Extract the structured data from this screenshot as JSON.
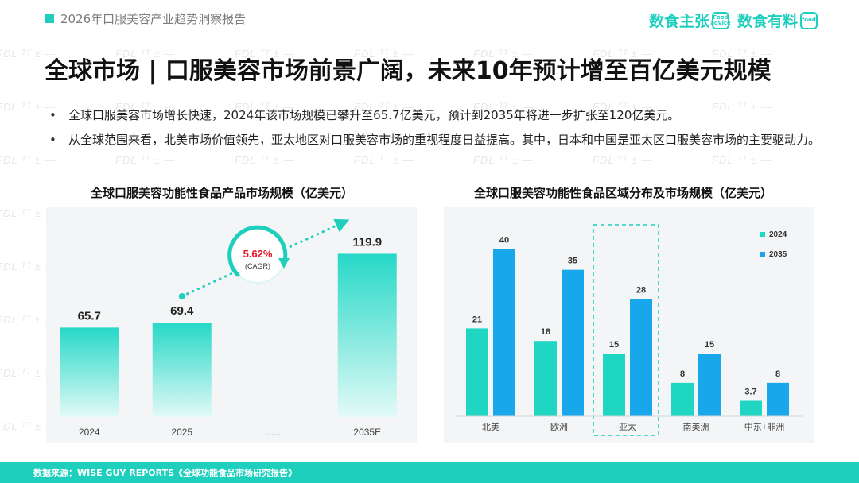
{
  "header": {
    "report_title": "2026年口服美容产业趋势洞察报告",
    "logo_left": "数食主张",
    "logo_left_badge": "Food advice",
    "logo_right": "数食有料",
    "logo_right_badge": "food",
    "watermark": "FDL ᵀᵀ ± —"
  },
  "main_title": "全球市场 | 口服美容市场前景广阔，未来10年预计增至百亿美元规模",
  "bullets": [
    "全球口服美容市场增长快速，2024年该市场规模已攀升至65.7亿美元，预计到2035年将进一步扩张至120亿美元。",
    "从全球范围来看，北美市场价值领先，亚太地区对口服美容市场的重视程度日益提高。其中，日本和中国是亚太区口服美容市场的主要驱动力。"
  ],
  "chart_data": [
    {
      "type": "bar",
      "title": "全球口服美容功能性食品产品市场规模（亿美元）",
      "categories": [
        "2024",
        "2025",
        "……",
        "2035E"
      ],
      "values": [
        65.7,
        69.4,
        null,
        119.9
      ],
      "value_labels": [
        "65.7",
        "69.4",
        "",
        "119.9"
      ],
      "ylim": [
        0,
        140
      ],
      "annotation": {
        "value": "5.62%",
        "label": "(CAGR)"
      },
      "colors": {
        "bar_top": "#26d8c7",
        "bar_bottom": "#e2faf7",
        "accent": "#1fcfbe",
        "cagr_text": "#e8192c"
      }
    },
    {
      "type": "bar",
      "title": "全球口服美容功能性食品区域分布及市场规模（亿美元）",
      "categories": [
        "北美",
        "欧洲",
        "亚太",
        "南美洲",
        "中东+非洲"
      ],
      "series": [
        {
          "name": "2024",
          "values": [
            21,
            18,
            15,
            8,
            3.7
          ],
          "labels": [
            "21",
            "18",
            "15",
            "8",
            "3.7"
          ],
          "color": "#1fd6c2"
        },
        {
          "name": "2035",
          "values": [
            40,
            35,
            28,
            15,
            8
          ],
          "labels": [
            "40",
            "35",
            "28",
            "15",
            "8"
          ],
          "color": "#17a7ea"
        }
      ],
      "ylim": [
        0,
        45
      ],
      "highlight_category": "亚太",
      "legend": "right"
    }
  ],
  "footer": {
    "source": "数据来源：WISE GUY REPORTS《全球功能食品市场研究报告》"
  }
}
